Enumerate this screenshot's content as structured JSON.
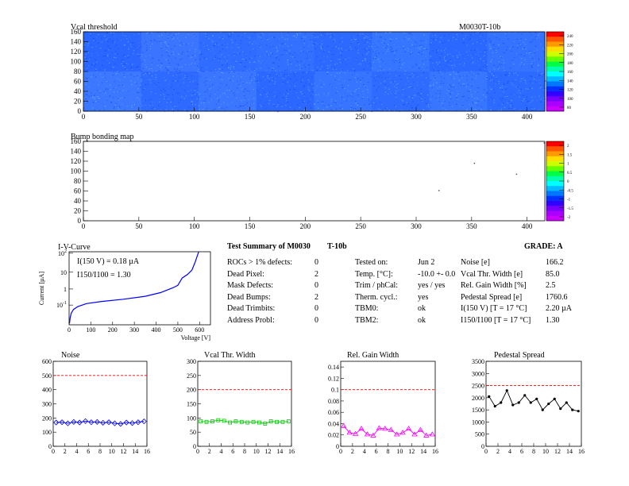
{
  "module_id": "M0030T-10b",
  "vcal_map": {
    "title": "Vcal threshold",
    "xlim": [
      0,
      416
    ],
    "ylim": [
      0,
      160
    ],
    "xticks": [
      0,
      50,
      100,
      150,
      200,
      250,
      300,
      350,
      400
    ],
    "yticks": [
      0,
      20,
      40,
      60,
      80,
      100,
      120,
      140,
      160
    ],
    "palette_labels": [
      "240",
      "220",
      "200",
      "180",
      "160",
      "140",
      "120",
      "100",
      "80"
    ]
  },
  "bump_map": {
    "title": "Bump bonding map",
    "xlim": [
      0,
      416
    ],
    "ylim": [
      0,
      160
    ],
    "xticks": [
      0,
      50,
      100,
      150,
      200,
      250,
      300,
      350,
      400
    ],
    "yticks": [
      0,
      20,
      40,
      60,
      80,
      100,
      120,
      140,
      160
    ],
    "palette_labels": [
      "2",
      "1.5",
      "1",
      "0.5",
      "0",
      "-0.5",
      "-1",
      "-1.5",
      "-2"
    ]
  },
  "iv_curve": {
    "title": "I-V-Curve",
    "xlabel": "Voltage [V]",
    "ylabel": "Current [µA]",
    "xlim": [
      0,
      650
    ],
    "xticks": [
      0,
      100,
      200,
      300,
      400,
      500,
      600
    ],
    "annotations": [
      "I(150 V) = 0.18 µA",
      "I150/I100 = 1.30"
    ]
  },
  "summary": {
    "title": "Test Summary of M0030",
    "module": "T-10b",
    "grade": "GRADE:  A",
    "left_rows": [
      {
        "label": "ROCs > 1% defects:",
        "value": "0"
      },
      {
        "label": "Dead Pixel:",
        "value": "2"
      },
      {
        "label": "Mask Defects:",
        "value": "0"
      },
      {
        "label": "Dead Bumps:",
        "value": "2"
      },
      {
        "label": "Dead Trimbits:",
        "value": "0"
      },
      {
        "label": "Address Probl:",
        "value": "0"
      }
    ],
    "mid_rows": [
      {
        "label": "Tested on:",
        "value": "Jun 2"
      },
      {
        "label": "Temp. [°C]:",
        "value": "-10.0 +- 0.0"
      },
      {
        "label": "Trim / phCal:",
        "value": "yes / yes"
      },
      {
        "label": "Therm. cycl.:",
        "value": "yes"
      },
      {
        "label": "TBM0:",
        "value": "ok"
      },
      {
        "label": "TBM2:",
        "value": "ok"
      }
    ],
    "right_rows": [
      {
        "label": "Noise [e]",
        "value": "166.2"
      },
      {
        "label": "Vcal Thr. Width [e]",
        "value": "85.0"
      },
      {
        "label": "Rel. Gain Width [%]",
        "value": "2.5"
      },
      {
        "label": "Pedestal Spread [e]",
        "value": "1760.6"
      },
      {
        "label": "I(150 V) [T = 17 °C]",
        "value": "2.20 µA"
      },
      {
        "label": "I150/I100  [T = 17 °C]",
        "value": "1.30"
      }
    ]
  },
  "chart_data": [
    {
      "type": "line",
      "title": "Noise",
      "color": "#0000ff",
      "x": [
        0,
        1,
        2,
        3,
        4,
        5,
        6,
        7,
        8,
        9,
        10,
        11,
        12,
        13,
        14,
        15
      ],
      "values": [
        168,
        170,
        162,
        172,
        168,
        178,
        170,
        172,
        166,
        170,
        162,
        158,
        168,
        164,
        170,
        176
      ],
      "xlim": [
        0,
        16
      ],
      "ylim": [
        0,
        600
      ],
      "limit": 500,
      "xticks": [
        0,
        2,
        4,
        6,
        8,
        10,
        12,
        14,
        16
      ],
      "yticks": [
        0,
        100,
        200,
        300,
        400,
        500,
        600
      ]
    },
    {
      "type": "line",
      "title": "Vcal Thr. Width",
      "color": "#00cc00",
      "x": [
        0,
        1,
        2,
        3,
        4,
        5,
        6,
        7,
        8,
        9,
        10,
        11,
        12,
        13,
        14,
        15
      ],
      "values": [
        88,
        86,
        88,
        92,
        90,
        84,
        88,
        86,
        84,
        86,
        84,
        80,
        88,
        86,
        86,
        88
      ],
      "xlim": [
        0,
        16
      ],
      "ylim": [
        0,
        300
      ],
      "limit": 200,
      "xticks": [
        0,
        2,
        4,
        6,
        8,
        10,
        12,
        14,
        16
      ],
      "yticks": [
        0,
        50,
        100,
        150,
        200,
        250,
        300
      ]
    },
    {
      "type": "line",
      "title": "Rel. Gain Width",
      "color": "#ff00ff",
      "x": [
        0,
        1,
        2,
        3,
        4,
        5,
        6,
        7,
        8,
        9,
        10,
        11,
        12,
        13,
        14,
        15
      ],
      "values": [
        0.036,
        0.024,
        0.022,
        0.031,
        0.021,
        0.019,
        0.032,
        0.031,
        0.029,
        0.021,
        0.024,
        0.031,
        0.021,
        0.029,
        0.019,
        0.021
      ],
      "xlim": [
        0,
        16
      ],
      "ylim": [
        0,
        0.15
      ],
      "limit": 0.1,
      "xticks": [
        0,
        2,
        4,
        6,
        8,
        10,
        12,
        14,
        16
      ],
      "yticks": [
        0,
        0.02,
        0.04,
        0.06,
        0.08,
        0.1,
        0.12,
        0.14
      ]
    },
    {
      "type": "line",
      "title": "Pedestal Spread",
      "color": "#000000",
      "x": [
        0,
        1,
        2,
        3,
        4,
        5,
        6,
        7,
        8,
        9,
        10,
        11,
        12,
        13,
        14,
        15
      ],
      "values": [
        2050,
        1650,
        1800,
        2300,
        1700,
        1800,
        2100,
        1800,
        1950,
        1500,
        1750,
        1950,
        1550,
        1800,
        1500,
        1450
      ],
      "xlim": [
        0,
        16
      ],
      "ylim": [
        0,
        3500
      ],
      "limit": 2500,
      "xticks": [
        0,
        2,
        4,
        6,
        8,
        10,
        12,
        14,
        16
      ],
      "yticks": [
        0,
        500,
        1000,
        1500,
        2000,
        2500,
        3000,
        3500
      ]
    }
  ]
}
